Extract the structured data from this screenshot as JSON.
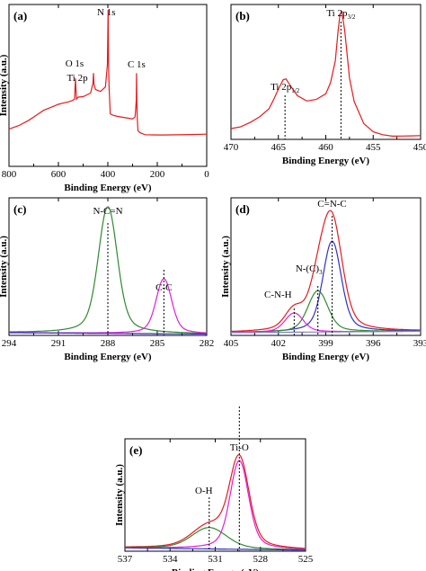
{
  "chart_data": [
    {
      "panel": "(a)",
      "type": "line",
      "xlabel": "Binding Energy (eV)",
      "ylabel": "Intensity (a.u.)",
      "xlim": [
        800,
        0
      ],
      "ylim": [
        0,
        1
      ],
      "x_ticks": [
        800,
        600,
        400,
        200,
        0
      ],
      "grid": false,
      "series": [
        {
          "color": "#e8191c",
          "x": [
            800,
            760,
            720,
            690,
            660,
            630,
            600,
            580,
            560,
            545,
            535,
            531,
            529,
            527,
            520,
            500,
            470,
            460,
            458,
            456,
            450,
            430,
            410,
            402,
            399,
            397,
            395,
            390,
            380,
            360,
            330,
            300,
            290,
            285,
            284,
            283,
            281,
            278,
            270,
            250,
            220,
            180,
            120,
            60,
            0
          ],
          "y": [
            0.23,
            0.25,
            0.28,
            0.31,
            0.34,
            0.36,
            0.38,
            0.39,
            0.4,
            0.41,
            0.42,
            0.55,
            0.48,
            0.42,
            0.43,
            0.43,
            0.45,
            0.51,
            0.57,
            0.5,
            0.47,
            0.46,
            0.49,
            0.63,
            0.97,
            0.63,
            0.49,
            0.33,
            0.32,
            0.31,
            0.3,
            0.29,
            0.3,
            0.4,
            0.57,
            0.4,
            0.3,
            0.22,
            0.21,
            0.2,
            0.2,
            0.2,
            0.2,
            0.2,
            0.2
          ]
        }
      ],
      "annotations": [
        {
          "text": "O 1s",
          "x": 531
        },
        {
          "text": "Ti 2p",
          "x": 458
        },
        {
          "text": "N 1s",
          "x": 399
        },
        {
          "text": "C 1s",
          "x": 284
        }
      ]
    },
    {
      "panel": "(b)",
      "type": "line",
      "xlabel": "Binding Energy (eV)",
      "ylabel": "",
      "xlim": [
        470,
        450
      ],
      "ylim": [
        0,
        1
      ],
      "x_ticks": [
        470,
        465,
        460,
        455,
        450
      ],
      "grid": false,
      "series": [
        {
          "color": "#e8191c",
          "x": [
            470,
            469,
            468,
            467,
            466,
            465.5,
            465,
            464.5,
            464.2,
            464,
            463.5,
            463,
            462,
            461,
            460,
            459.5,
            459,
            458.7,
            458.5,
            458.3,
            458,
            457.5,
            457,
            456,
            455,
            454,
            453,
            452,
            451,
            450
          ],
          "y": [
            0.08,
            0.09,
            0.12,
            0.16,
            0.22,
            0.29,
            0.37,
            0.44,
            0.45,
            0.43,
            0.38,
            0.33,
            0.29,
            0.3,
            0.34,
            0.42,
            0.58,
            0.8,
            0.92,
            0.94,
            0.8,
            0.45,
            0.28,
            0.12,
            0.06,
            0.04,
            0.03,
            0.03,
            0.03,
            0.03
          ]
        }
      ],
      "annotations": [
        {
          "text": "Ti 2p",
          "subscript": "1/2",
          "x": 464.3
        },
        {
          "text": "Ti 2p",
          "subscript": "3/2",
          "x": 458.4
        }
      ]
    },
    {
      "panel": "(c)",
      "type": "line",
      "xlabel": "Binding Energy (eV)",
      "ylabel": "Intensity (a.u.)",
      "xlim": [
        294,
        282
      ],
      "ylim": [
        0,
        1
      ],
      "x_ticks": [
        294,
        291,
        288,
        285,
        282
      ],
      "grid": false,
      "series": [
        {
          "color": "#2e8b2e",
          "peaks": [
            [
              288.0,
              0.92,
              0.55
            ]
          ],
          "baseline": [
            0.02,
            0.01
          ]
        },
        {
          "color": "#e020d8",
          "peaks": [
            [
              284.6,
              0.4,
              0.45
            ]
          ],
          "baseline": [
            0.02,
            0.01
          ]
        },
        {
          "color": "#3030c8",
          "peaks": [],
          "baseline": [
            0.02,
            0.01
          ]
        }
      ],
      "annotations": [
        {
          "text": "N-C=N",
          "x": 288.0
        },
        {
          "text": "C-C",
          "x": 284.6
        }
      ]
    },
    {
      "panel": "(d)",
      "type": "line",
      "xlabel": "Binding Energy (eV)",
      "ylabel": "Intensity (a.u.)",
      "xlim": [
        405,
        393
      ],
      "ylim": [
        0,
        1
      ],
      "x_ticks": [
        405,
        402,
        399,
        396,
        393
      ],
      "grid": false,
      "series": [
        {
          "color": "#e8191c",
          "peaks": [
            [
              398.6,
              0.78,
              0.62
            ],
            [
              399.5,
              0.26,
              0.55
            ],
            [
              401.0,
              0.14,
              0.55
            ]
          ],
          "baseline": [
            0.02,
            0.03
          ]
        },
        {
          "color": "#3030c8",
          "peaks": [
            [
              398.6,
              0.66,
              0.55
            ]
          ],
          "baseline": [
            0.02,
            0.03
          ]
        },
        {
          "color": "#2e8b2e",
          "peaks": [
            [
              399.5,
              0.3,
              0.6
            ]
          ],
          "baseline": [
            0.02,
            0.03
          ]
        },
        {
          "color": "#e020d8",
          "peaks": [
            [
              401.0,
              0.14,
              0.55
            ]
          ],
          "baseline": [
            0.02,
            0.03
          ]
        },
        {
          "color": "#8080c0",
          "peaks": [],
          "baseline": [
            0.02,
            0.03
          ]
        }
      ],
      "annotations": [
        {
          "text": "C=N-C",
          "x": 398.6
        },
        {
          "text": "N-(C)",
          "subscript": "3",
          "x": 399.5
        },
        {
          "text": "C-N-H",
          "x": 401.0
        }
      ]
    },
    {
      "panel": "(e)",
      "type": "line",
      "xlabel": "Binding Energy (eV)",
      "ylabel": "Intensity (a.u.)",
      "xlim": [
        537,
        525
      ],
      "ylim": [
        0,
        1
      ],
      "x_ticks": [
        537,
        534,
        531,
        528,
        525
      ],
      "grid": false,
      "series": [
        {
          "color": "#e8191c",
          "peaks": [
            [
              529.4,
              0.79,
              0.62
            ],
            [
              531.4,
              0.19,
              1.1
            ]
          ],
          "baseline": [
            0.03,
            0.01
          ]
        },
        {
          "color": "#e020d8",
          "peaks": [
            [
              529.4,
              0.79,
              0.58
            ]
          ],
          "baseline": [
            0.03,
            0.01
          ]
        },
        {
          "color": "#2e8b2e",
          "peaks": [
            [
              531.4,
              0.19,
              1.1
            ]
          ],
          "baseline": [
            0.03,
            0.01
          ]
        },
        {
          "color": "#3030c8",
          "peaks": [],
          "baseline": [
            0.03,
            0.01
          ]
        }
      ],
      "annotations": [
        {
          "text": "Ti-O",
          "x": 529.4
        },
        {
          "text": "O-H",
          "x": 531.4
        }
      ]
    }
  ]
}
